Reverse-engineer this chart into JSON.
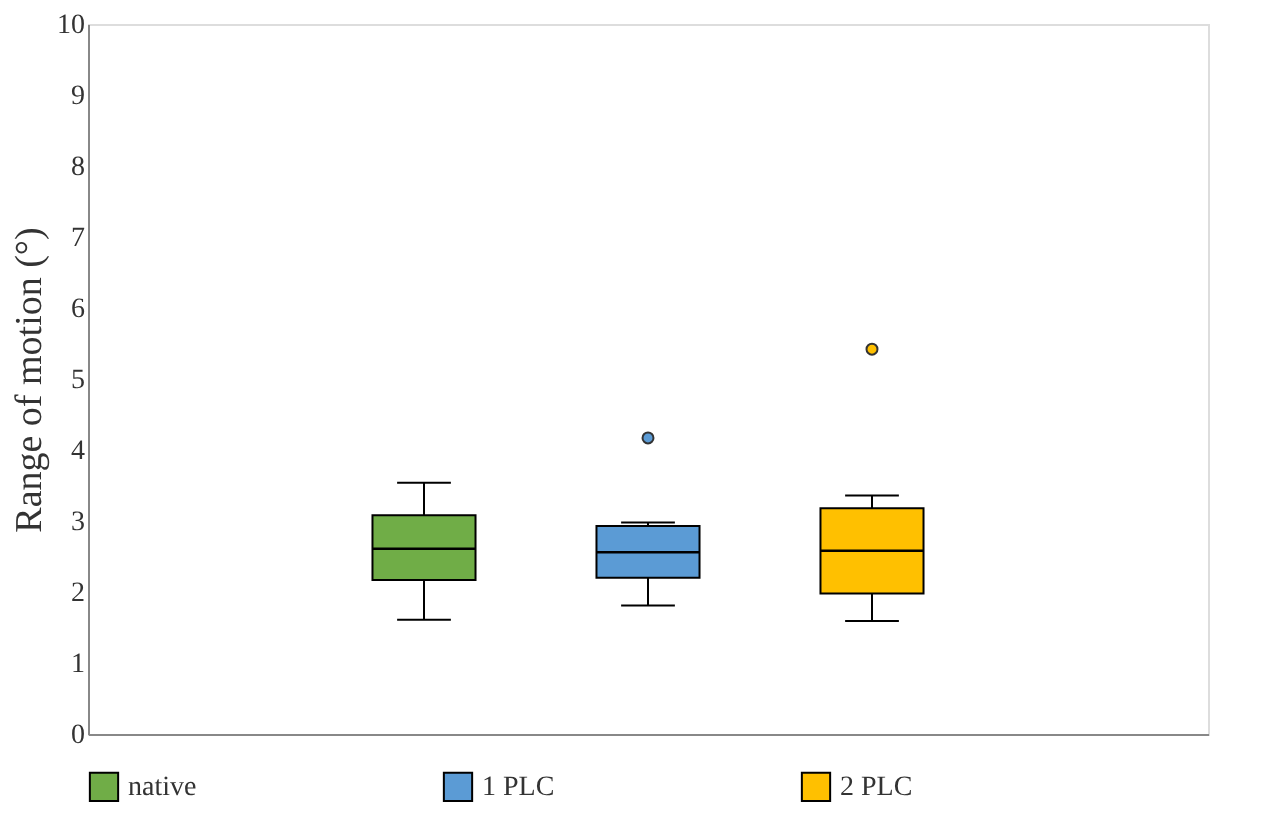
{
  "chart_data": {
    "type": "box",
    "ylabel": "Range of motion (°)",
    "categories": [
      null,
      null,
      null,
      null,
      null
    ],
    "series": [
      {
        "name": "native",
        "color": "#70ad47",
        "boxes": [
          null,
          {
            "low": 1.61,
            "q1": 2.17,
            "median": 2.61,
            "q3": 3.08,
            "high": 3.54
          },
          null,
          null,
          null
        ]
      },
      {
        "name": "1 PLC",
        "color": "#5b9bd5",
        "boxes": [
          null,
          null,
          {
            "low": 1.81,
            "q1": 2.2,
            "median": 2.56,
            "q3": 2.93,
            "high": 2.98,
            "outliers": [
              4.17
            ]
          },
          null,
          null
        ]
      },
      {
        "name": "2 PLC",
        "color": "#ffc000",
        "boxes": [
          null,
          null,
          null,
          {
            "low": 1.59,
            "q1": 1.98,
            "median": 2.58,
            "q3": 3.18,
            "high": 3.36,
            "outliers": [
              5.42
            ]
          },
          null
        ]
      }
    ],
    "ylim": [
      0,
      10
    ],
    "yticks": [
      0,
      1,
      2,
      3,
      4,
      5,
      6,
      7,
      8,
      9,
      10
    ],
    "grid": false,
    "legend": "bottom",
    "tick_labels": "y"
  }
}
